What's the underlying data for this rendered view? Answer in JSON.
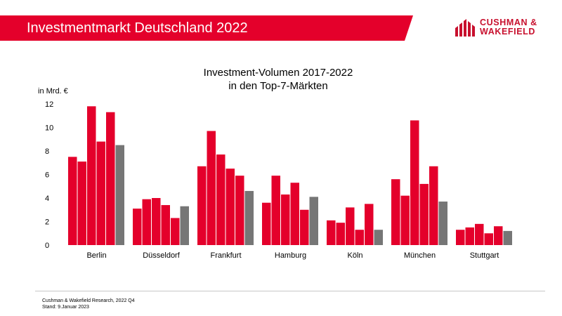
{
  "header": {
    "title": "Investmentmarkt Deutschland 2022",
    "logo_text_line1": "CUSHMAN &",
    "logo_text_line2": "WAKEFIELD"
  },
  "colors": {
    "accent": "#e4002b",
    "bar_red": "#e4002b",
    "bar_gray": "#767676",
    "logo": "#c8102e"
  },
  "chart_data": {
    "type": "bar",
    "title": "Investment-Volumen 2017-2022",
    "subtitle": "in den Top-7-Märkten",
    "ylabel": "in Mrd. €",
    "xlabel": "",
    "ylim": [
      0,
      12
    ],
    "yticks": [
      0,
      2,
      4,
      6,
      8,
      10,
      12
    ],
    "grid": false,
    "legend": "none",
    "categories": [
      "Berlin",
      "Düsseldorf",
      "Frankfurt",
      "Hamburg",
      "Köln",
      "München",
      "Stuttgart"
    ],
    "series": [
      {
        "values": [
          7.5,
          3.1,
          6.7,
          3.6,
          2.1,
          5.6,
          1.3
        ]
      },
      {
        "values": [
          7.1,
          3.9,
          9.7,
          5.9,
          1.9,
          4.2,
          1.5
        ]
      },
      {
        "values": [
          11.8,
          4.0,
          7.7,
          4.3,
          3.2,
          10.6,
          1.8
        ]
      },
      {
        "values": [
          8.8,
          3.4,
          6.5,
          5.3,
          1.3,
          5.2,
          1.0
        ]
      },
      {
        "values": [
          11.3,
          2.3,
          5.9,
          3.0,
          3.5,
          6.7,
          1.6
        ]
      },
      {
        "values": [
          8.5,
          3.3,
          4.6,
          4.1,
          1.3,
          3.7,
          1.2
        ]
      }
    ]
  },
  "footer": {
    "source": "Cushman & Wakefield Research, 2022 Q4",
    "date": "Stand: 9.Januar 2023"
  }
}
